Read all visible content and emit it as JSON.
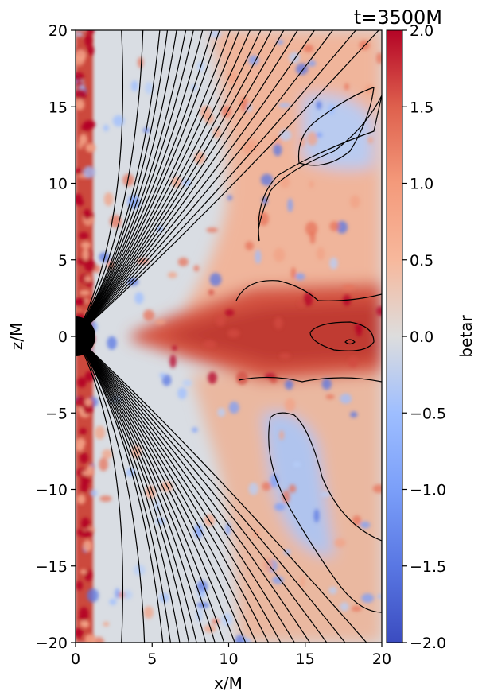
{
  "chart_data": {
    "type": "heatmap",
    "title": "t=3500M",
    "xlabel": "x/M",
    "ylabel": "z/M",
    "xlim": [
      0,
      20
    ],
    "ylim": [
      -20,
      20
    ],
    "x_ticks": [
      0,
      5,
      10,
      15,
      20
    ],
    "y_ticks": [
      -20,
      -15,
      -10,
      -5,
      0,
      5,
      10,
      15,
      20
    ],
    "x_tick_labels": [
      "0",
      "5",
      "10",
      "15",
      "20"
    ],
    "y_tick_labels": [
      "−20",
      "−15",
      "−10",
      "−5",
      "0",
      "5",
      "10",
      "15",
      "20"
    ],
    "colorbar": {
      "label": "betar",
      "colormap": "coolwarm",
      "range": [
        -2.0,
        2.0
      ],
      "ticks": [
        -2.0,
        -1.5,
        -1.0,
        -0.5,
        0.0,
        0.5,
        1.0,
        1.5,
        2.0
      ],
      "tick_labels": [
        "−2.0",
        "−1.5",
        "−1.0",
        "−0.5",
        "0.0",
        "0.5",
        "1.0",
        "1.5",
        "2.0"
      ],
      "color_min": "#3b4cc0",
      "color_mid": "#dddddd",
      "color_max": "#b40426"
    },
    "black_hole_radius": 1.3,
    "field_line_color": "#000000",
    "field_lines_upper_top_x": [
      3.0,
      4.4,
      5.5,
      6.0,
      6.6,
      7.2,
      7.7,
      8.3,
      8.9,
      9.4,
      10.1,
      10.7,
      11.4,
      12.1,
      12.8,
      13.6,
      14.5,
      15.6,
      16.8,
      18.3,
      19.8
    ],
    "field_lines_lower_bottom_x": [
      3.0,
      4.5,
      5.7,
      6.2,
      6.8,
      7.4,
      7.9,
      8.5,
      9.1,
      9.7,
      10.4,
      11.1,
      11.8,
      12.6,
      13.4,
      14.3,
      15.3,
      16.4,
      17.6,
      19.0
    ],
    "regions": [
      {
        "name": "inner_edge_strip",
        "x": [
          0,
          1.2
        ],
        "z": [
          -20,
          20
        ],
        "value": 1.7
      },
      {
        "name": "equatorial_disk",
        "x": [
          5,
          20
        ],
        "z": [
          -2.5,
          3.5
        ],
        "value": 1.4
      },
      {
        "name": "upper_outflow",
        "x": [
          10,
          20
        ],
        "z": [
          3,
          20
        ],
        "value": 0.5
      },
      {
        "name": "lower_outflow",
        "x": [
          10,
          20
        ],
        "z": [
          -20,
          -3
        ],
        "value": 0.4
      },
      {
        "name": "funnel",
        "x": [
          0,
          10
        ],
        "z": [
          -20,
          20
        ],
        "value": -0.2
      }
    ]
  }
}
